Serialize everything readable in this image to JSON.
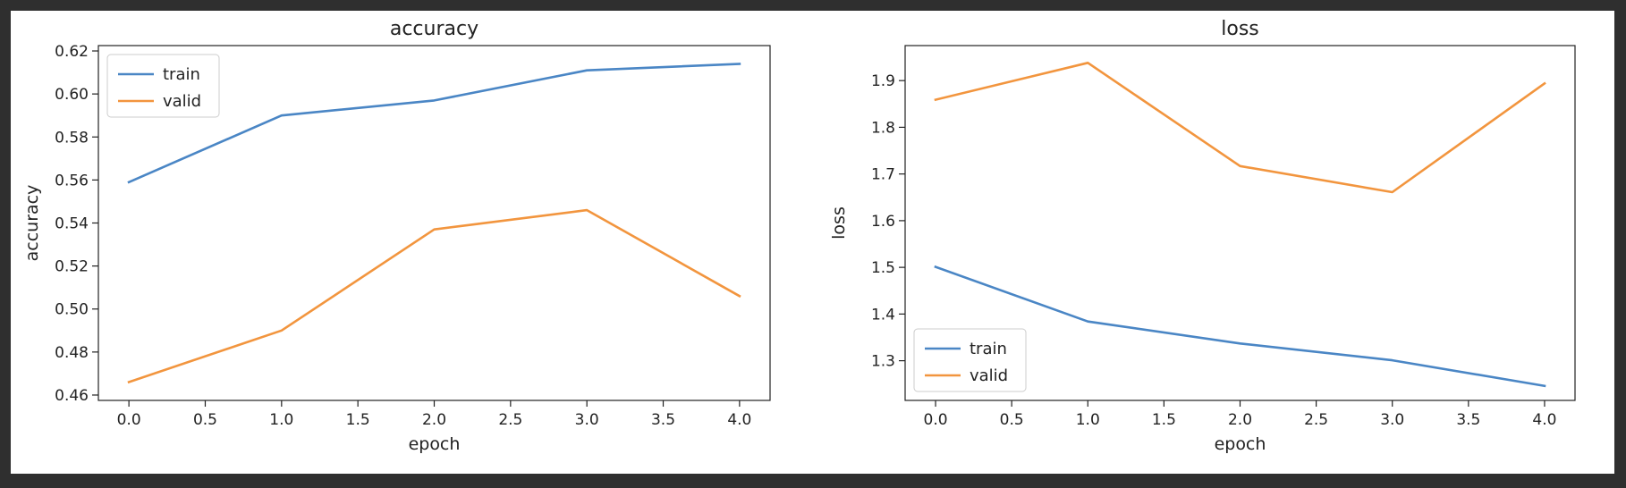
{
  "chart_data": [
    {
      "type": "line",
      "title": "accuracy",
      "xlabel": "epoch",
      "ylabel": "accuracy",
      "x": [
        0,
        1,
        2,
        3,
        4
      ],
      "xlim": [
        -0.2,
        4.2
      ],
      "ylim": [
        0.4575,
        0.6225
      ],
      "xticks": [
        "0.0",
        "0.5",
        "1.0",
        "1.5",
        "2.0",
        "2.5",
        "3.0",
        "3.5",
        "4.0"
      ],
      "yticks": [
        "0.46",
        "0.48",
        "0.50",
        "0.52",
        "0.54",
        "0.56",
        "0.58",
        "0.60",
        "0.62"
      ],
      "legend": "upper-left",
      "grid": false,
      "series": [
        {
          "name": "train",
          "color": "#4a86c5",
          "values": [
            0.559,
            0.59,
            0.597,
            0.611,
            0.614
          ]
        },
        {
          "name": "valid",
          "color": "#f2953e",
          "values": [
            0.466,
            0.49,
            0.537,
            0.546,
            0.506
          ]
        }
      ]
    },
    {
      "type": "line",
      "title": "loss",
      "xlabel": "epoch",
      "ylabel": "loss",
      "x": [
        0,
        1,
        2,
        3,
        4
      ],
      "xlim": [
        -0.2,
        4.2
      ],
      "ylim": [
        1.215,
        1.975
      ],
      "xticks": [
        "0.0",
        "0.5",
        "1.0",
        "1.5",
        "2.0",
        "2.5",
        "3.0",
        "3.5",
        "4.0"
      ],
      "yticks": [
        "1.3",
        "1.4",
        "1.5",
        "1.6",
        "1.7",
        "1.8",
        "1.9"
      ],
      "legend": "lower-left",
      "grid": false,
      "series": [
        {
          "name": "train",
          "color": "#4a86c5",
          "values": [
            1.501,
            1.384,
            1.337,
            1.301,
            1.246
          ]
        },
        {
          "name": "valid",
          "color": "#f2953e",
          "values": [
            1.859,
            1.938,
            1.717,
            1.661,
            1.894
          ]
        }
      ]
    }
  ]
}
